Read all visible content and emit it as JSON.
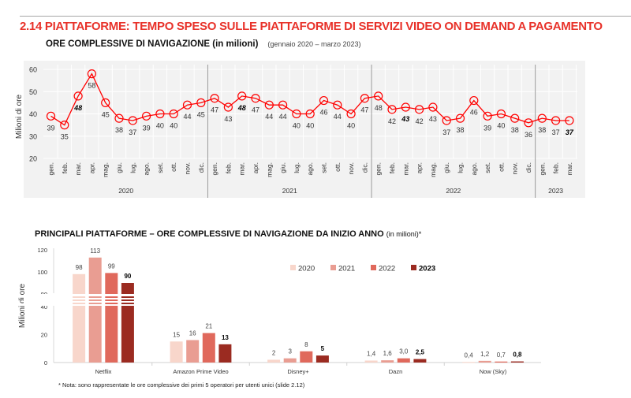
{
  "header": {
    "title": "2.14 PIATTAFORME: TEMPO SPESO SULLE PIATTAFORME DI SERVIZI VIDEO ON DEMAND A PAGAMENTO",
    "line_chart_title": "ORE COMPLESSIVE DI NAVIGAZIONE (in milioni)",
    "line_chart_period": "(gennaio 2020 – marzo 2023)",
    "bar_chart_title": "PRINCIPALI PIATTAFORME – ORE COMPLESSIVE DI NAVIGAZIONE DA INIZIO ANNO",
    "bar_chart_unit": "(in milioni)*",
    "note": "* Nota: sono rappresentate le ore complessive dei primi 5 operatori per utenti unici (slide 2.12)"
  },
  "chart_data": [
    {
      "type": "line",
      "ylabel": "Milioni di ore",
      "ylim": [
        20,
        60
      ],
      "yticks": [
        "20",
        "30",
        "40",
        "50",
        "60"
      ],
      "grid": true,
      "line_color": "#ff0000",
      "background": "#f2f2f2",
      "years": [
        {
          "label": "2020",
          "months": [
            "gen.",
            "feb.",
            "mar.",
            "apr.",
            "mag.",
            "giu.",
            "lug.",
            "ago.",
            "set.",
            "ott.",
            "nov.",
            "dic."
          ],
          "values": [
            39,
            35,
            48,
            58,
            45,
            38,
            37,
            39,
            40,
            40,
            44,
            45
          ],
          "highlight": [
            2
          ]
        },
        {
          "label": "2021",
          "months": [
            "gen.",
            "feb.",
            "mar.",
            "apr.",
            "mag.",
            "giu.",
            "lug.",
            "ago.",
            "set.",
            "ott.",
            "nov.",
            "dic."
          ],
          "values": [
            47,
            43,
            48,
            47,
            44,
            44,
            40,
            40,
            46,
            44,
            40,
            47
          ],
          "highlight": [
            2
          ]
        },
        {
          "label": "2022",
          "months": [
            "gen.",
            "feb.",
            "mar.",
            "apr.",
            "mag.",
            "giu.",
            "lug.",
            "ago.",
            "set.",
            "ott.",
            "nov.",
            "dic."
          ],
          "values": [
            48,
            42,
            43,
            42,
            43,
            37,
            38,
            46,
            39,
            40,
            38,
            36
          ],
          "highlight": [
            2
          ]
        },
        {
          "label": "2023",
          "months": [
            "gen.",
            "feb.",
            "mar."
          ],
          "values": [
            38,
            37,
            37
          ],
          "highlight": [
            2
          ]
        }
      ]
    },
    {
      "type": "bar",
      "ylabel": "Milioni di ore",
      "axis_break": [
        40,
        80
      ],
      "yticks": [
        "0",
        "20",
        "40",
        "80",
        "100",
        "120"
      ],
      "legend_position": "top-right",
      "categories": [
        "Netflix",
        "Amazon Prime Video",
        "Disney+",
        "Dazn",
        "Now (Sky)"
      ],
      "series": [
        {
          "name": "2020",
          "color": "#f8d6cb",
          "values": [
            98,
            15,
            2,
            1.4,
            0.4
          ],
          "labels": [
            "98",
            "15",
            "2",
            "1,4",
            "0,4"
          ]
        },
        {
          "name": "2021",
          "color": "#e99d92",
          "values": [
            113,
            16,
            3,
            1.6,
            1.2
          ],
          "labels": [
            "113",
            "16",
            "3",
            "1,6",
            "1,2"
          ]
        },
        {
          "name": "2022",
          "color": "#e0695c",
          "values": [
            99,
            21,
            8,
            3.0,
            0.7
          ],
          "labels": [
            "99",
            "21",
            "8",
            "3,0",
            "0,7"
          ]
        },
        {
          "name": "2023",
          "color": "#9b2b21",
          "values": [
            90,
            13,
            5,
            2.5,
            0.8
          ],
          "labels": [
            "90",
            "13",
            "5",
            "2,5",
            "0,8"
          ],
          "bold": true
        }
      ]
    }
  ]
}
